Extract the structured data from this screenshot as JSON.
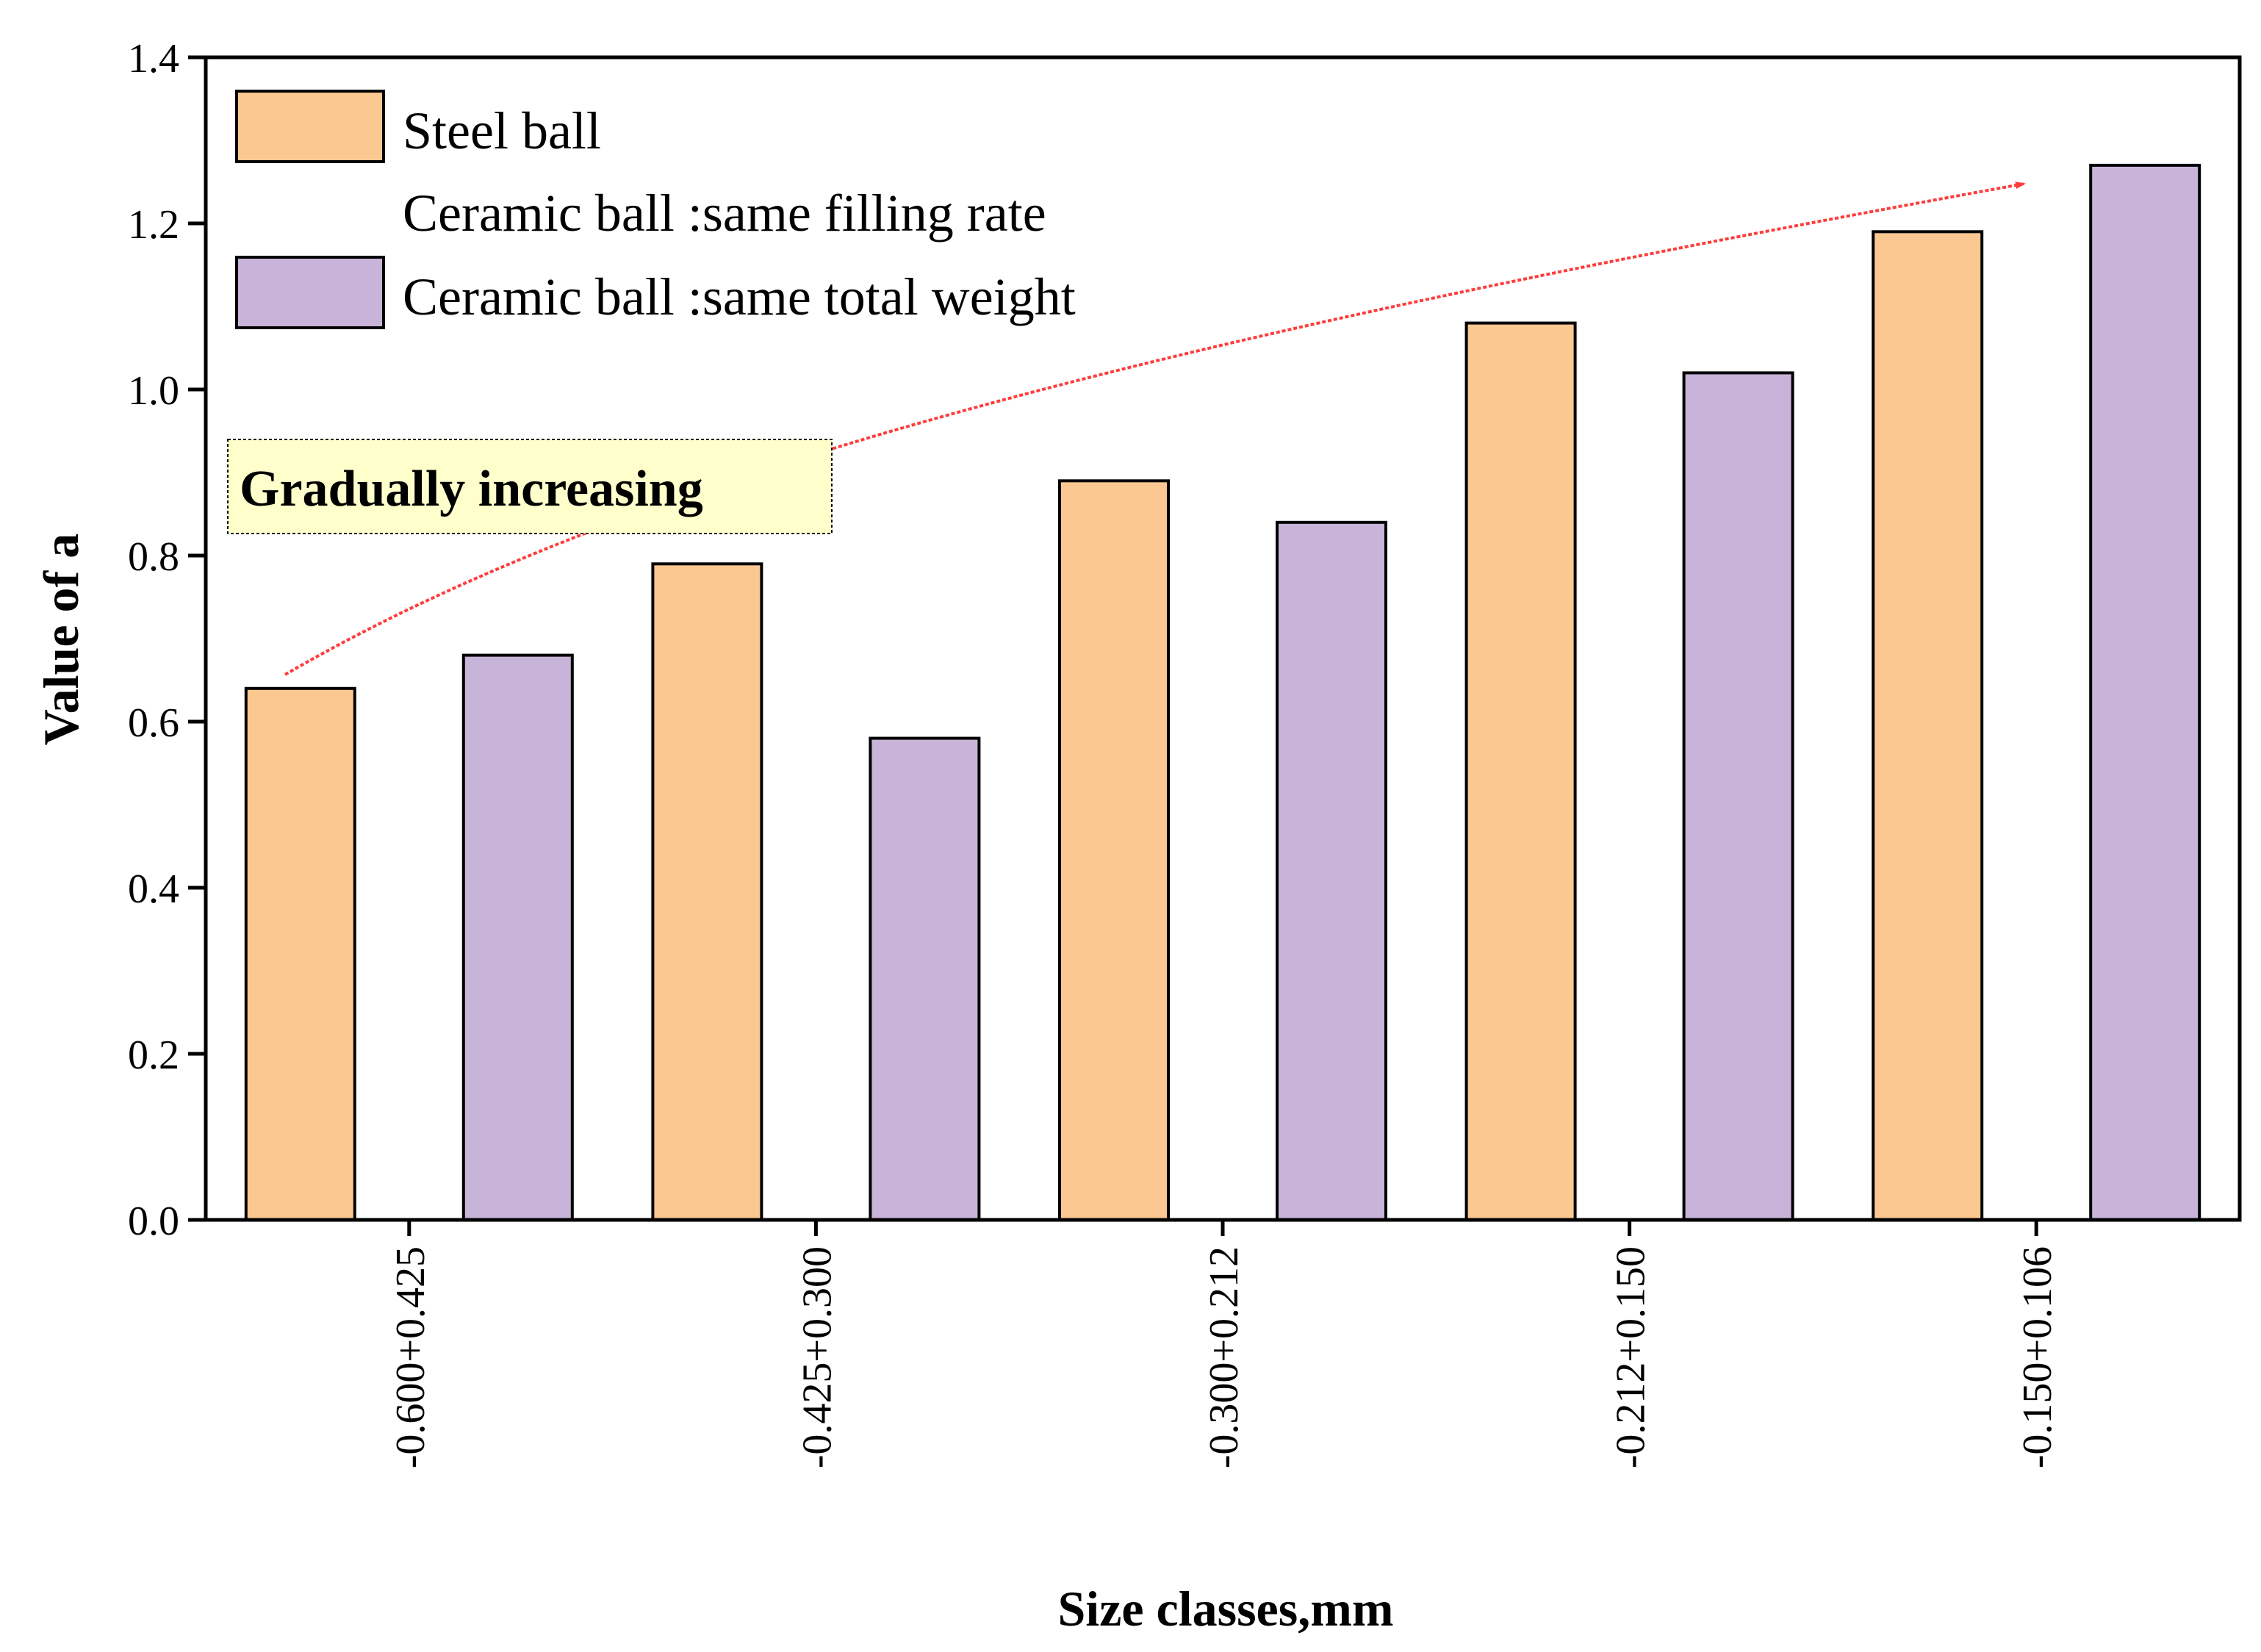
{
  "chart_data": {
    "type": "bar",
    "categories": [
      "-0.600+0.425",
      "-0.425+0.300",
      "-0.300+0.212",
      "-0.212+0.150",
      "-0.150+0.106"
    ],
    "series": [
      {
        "name": "Steel ball",
        "values": [
          0.64,
          0.79,
          0.89,
          1.08,
          1.19
        ],
        "color": "#FCC891"
      },
      {
        "name": "Ceramic ball :same filling rate",
        "values": [
          null,
          null,
          null,
          null,
          null
        ],
        "color": "#FFFFFF"
      },
      {
        "name": "Ceramic ball :same total weight",
        "values": [
          0.68,
          0.58,
          0.84,
          1.02,
          1.27
        ],
        "color": "#C8B4D8"
      }
    ],
    "title": "",
    "xlabel": "Size classes,mm",
    "ylabel": "Value of a",
    "ylim": [
      0,
      1.4
    ],
    "yticks": [
      "0.0",
      "0.2",
      "0.4",
      "0.6",
      "0.8",
      "1.0",
      "1.2",
      "1.4"
    ],
    "legend_position": "top-left",
    "annotation": {
      "text": "Gradually increasing",
      "arrow": "increasing trend from first to last category",
      "arrow_color": "#FF3B3B",
      "box_color": "#FFFFCC"
    }
  }
}
